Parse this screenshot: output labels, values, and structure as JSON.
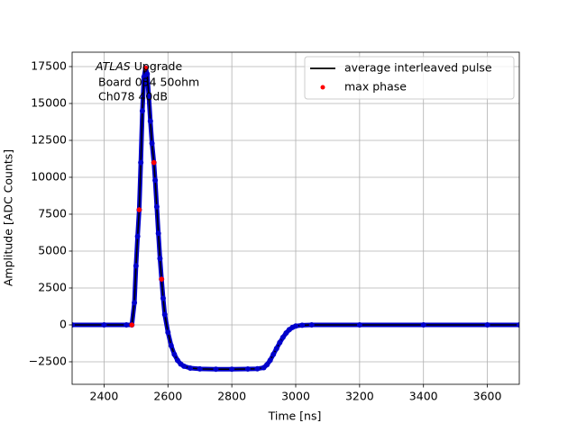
{
  "chart_data": {
    "type": "line",
    "xlabel": "Time [ns]",
    "ylabel": "Amplitude [ADC Counts]",
    "annotation": {
      "italic": "ATLAS",
      "text": "Upgrade",
      "lines": [
        "Board 034 50ohm",
        "Ch078 40dB"
      ]
    },
    "xlim": [
      2300,
      3700
    ],
    "xticks": [
      2400,
      2600,
      2800,
      3000,
      3200,
      3400,
      3600
    ],
    "ylim": [
      -4025,
      18475
    ],
    "yticks": [
      {
        "value": -2500,
        "label": "−2500"
      },
      0,
      2500,
      5000,
      7500,
      10000,
      12500,
      15000,
      17500
    ],
    "grid": true,
    "legend": "upper right",
    "series": [
      {
        "name": "average interleaved pulse",
        "color": "#000000",
        "marker_color": "#0000cc",
        "x": [
          2300,
          2400,
          2470,
          2487,
          2495,
          2500,
          2505,
          2510,
          2515,
          2520,
          2525,
          2530,
          2535,
          2540,
          2545,
          2550,
          2556,
          2560,
          2565,
          2570,
          2575,
          2580,
          2585,
          2590,
          2600,
          2610,
          2620,
          2630,
          2640,
          2650,
          2670,
          2700,
          2750,
          2800,
          2850,
          2880,
          2900,
          2910,
          2920,
          2930,
          2940,
          2950,
          2960,
          2970,
          2980,
          2990,
          3000,
          3020,
          3050,
          3200,
          3400,
          3600,
          3700
        ],
        "values": [
          0,
          0,
          0,
          0,
          1500,
          4000,
          6000,
          7800,
          11000,
          14500,
          16800,
          17400,
          17000,
          15500,
          13800,
          12300,
          11000,
          9800,
          8000,
          6200,
          4500,
          3100,
          1800,
          700,
          -500,
          -1400,
          -2000,
          -2400,
          -2650,
          -2800,
          -2930,
          -2980,
          -3000,
          -3000,
          -2990,
          -2970,
          -2900,
          -2700,
          -2400,
          -2000,
          -1600,
          -1200,
          -850,
          -550,
          -320,
          -170,
          -80,
          -20,
          0,
          0,
          0,
          0,
          0
        ]
      },
      {
        "name": "max phase",
        "color": "#ff0000",
        "scatter": true,
        "x": [
          2487,
          2510,
          2530,
          2556,
          2580
        ],
        "values": [
          0,
          7800,
          17400,
          11000,
          3100
        ]
      }
    ]
  }
}
